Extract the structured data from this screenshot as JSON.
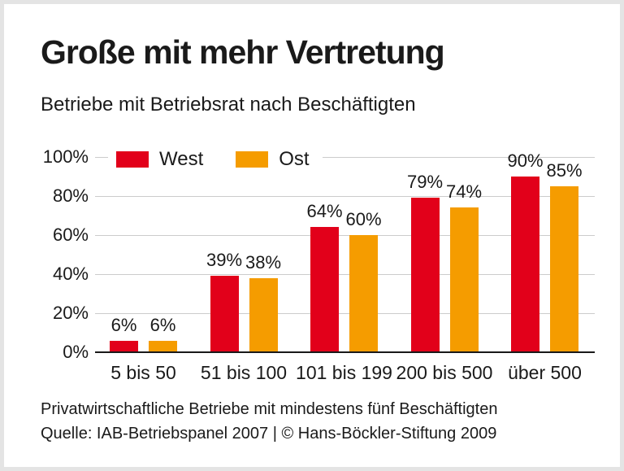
{
  "title": "Große mit mehr Vertretung",
  "subtitle": "Betriebe mit Betriebsrat nach Beschäftigten",
  "chart_data": {
    "type": "bar",
    "categories": [
      "5 bis 50",
      "51 bis 100",
      "101 bis 199",
      "200 bis 500",
      "über 500"
    ],
    "series": [
      {
        "name": "West",
        "color": "#e2001a",
        "values": [
          6,
          39,
          64,
          79,
          90
        ]
      },
      {
        "name": "Ost",
        "color": "#f59c00",
        "values": [
          6,
          38,
          60,
          74,
          85
        ]
      }
    ],
    "value_suffix": "%",
    "yticks": [
      0,
      20,
      40,
      60,
      80,
      100
    ],
    "ytick_labels": [
      "0%",
      "20%",
      "40%",
      "60%",
      "80%",
      "100%"
    ],
    "ylim": [
      0,
      100
    ],
    "grid": true,
    "legend_position": "top-inside",
    "xlabel": "",
    "ylabel": ""
  },
  "footer": {
    "note": "Privatwirtschaftliche Betriebe mit mindestens fünf Beschäftigten",
    "source": "Quelle: IAB-Betriebspanel 2007 | © Hans-Böckler-Stiftung 2009"
  },
  "colors": {
    "west": "#e2001a",
    "ost": "#f59c00",
    "grid": "#cccccc",
    "axis": "#1a1a1a",
    "text": "#1a1a1a",
    "frame": "#e4e4e4",
    "background": "#ffffff"
  }
}
